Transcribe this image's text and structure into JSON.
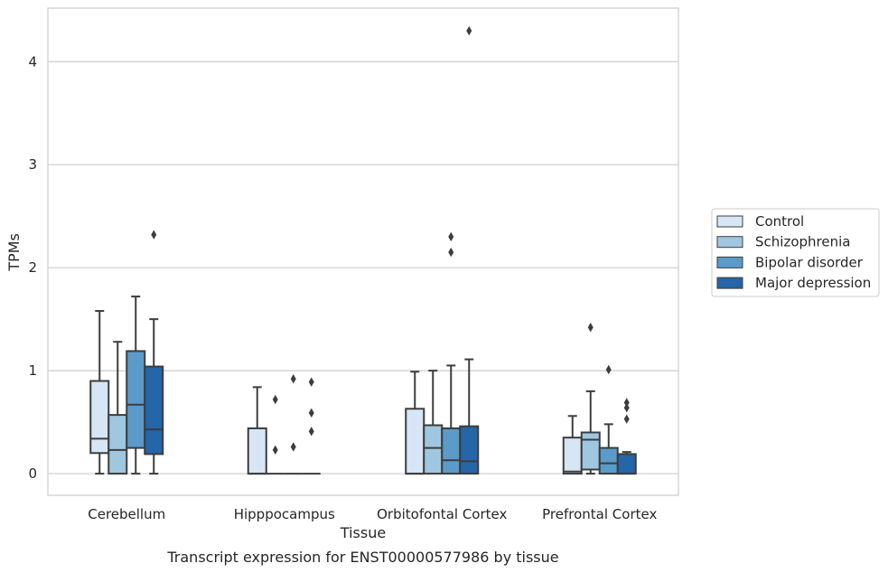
{
  "chart_data": {
    "type": "box",
    "title": "Transcript expression for ENST00000577986 by tissue",
    "xlabel": "Tissue",
    "ylabel": "TPMs",
    "ylim": [
      -0.21,
      4.52
    ],
    "yticks": [
      0,
      1,
      2,
      3,
      4
    ],
    "grid": "horizontal",
    "legend_position": "right",
    "categories": [
      "Cerebellum",
      "Hipppocampus",
      "Orbitofontal Cortex",
      "Prefrontal Cortex"
    ],
    "series": [
      {
        "name": "Control",
        "color": "#d6e6f4",
        "boxes": [
          {
            "whislo": 0.0,
            "q1": 0.2,
            "median": 0.34,
            "q3": 0.9,
            "whishi": 1.58,
            "fliers": []
          },
          {
            "whislo": 0.0,
            "q1": 0.0,
            "median": 0.0,
            "q3": 0.44,
            "whishi": 0.84,
            "fliers": []
          },
          {
            "whislo": 0.0,
            "q1": 0.0,
            "median": 0.0,
            "q3": 0.63,
            "whishi": 0.99,
            "fliers": []
          },
          {
            "whislo": 0.0,
            "q1": 0.0,
            "median": 0.02,
            "q3": 0.35,
            "whishi": 0.56,
            "fliers": []
          }
        ]
      },
      {
        "name": "Schizophrenia",
        "color": "#9fc7e0",
        "boxes": [
          {
            "whislo": 0.0,
            "q1": 0.0,
            "median": 0.23,
            "q3": 0.57,
            "whishi": 1.28,
            "fliers": []
          },
          {
            "whislo": 0.0,
            "q1": 0.0,
            "median": 0.0,
            "q3": 0.0,
            "whishi": 0.0,
            "fliers": [
              0.72,
              0.23
            ]
          },
          {
            "whislo": 0.0,
            "q1": 0.0,
            "median": 0.25,
            "q3": 0.47,
            "whishi": 1.0,
            "fliers": []
          },
          {
            "whislo": 0.0,
            "q1": 0.04,
            "median": 0.33,
            "q3": 0.4,
            "whishi": 0.8,
            "fliers": [
              1.42
            ]
          }
        ]
      },
      {
        "name": "Bipolar disorder",
        "color": "#5b9bc9",
        "boxes": [
          {
            "whislo": 0.0,
            "q1": 0.25,
            "median": 0.67,
            "q3": 1.19,
            "whishi": 1.72,
            "fliers": []
          },
          {
            "whislo": 0.0,
            "q1": 0.0,
            "median": 0.0,
            "q3": 0.0,
            "whishi": 0.0,
            "fliers": [
              0.92,
              0.26
            ]
          },
          {
            "whislo": 0.0,
            "q1": 0.0,
            "median": 0.13,
            "q3": 0.44,
            "whishi": 1.05,
            "fliers": [
              2.3,
              2.15
            ]
          },
          {
            "whislo": 0.0,
            "q1": 0.0,
            "median": 0.1,
            "q3": 0.25,
            "whishi": 0.48,
            "fliers": [
              1.01
            ]
          }
        ]
      },
      {
        "name": "Major depression",
        "color": "#2466a8",
        "boxes": [
          {
            "whislo": 0.0,
            "q1": 0.19,
            "median": 0.43,
            "q3": 1.04,
            "whishi": 1.5,
            "fliers": [
              2.32
            ]
          },
          {
            "whislo": 0.0,
            "q1": 0.0,
            "median": 0.0,
            "q3": 0.0,
            "whishi": 0.0,
            "fliers": [
              0.89,
              0.59,
              0.41
            ]
          },
          {
            "whislo": 0.0,
            "q1": 0.0,
            "median": 0.12,
            "q3": 0.46,
            "whishi": 1.11,
            "fliers": [
              4.3
            ]
          },
          {
            "whislo": 0.0,
            "q1": 0.0,
            "median": 0.0,
            "q3": 0.19,
            "whishi": 0.21,
            "fliers": [
              0.69,
              0.64,
              0.53
            ]
          }
        ]
      }
    ]
  }
}
